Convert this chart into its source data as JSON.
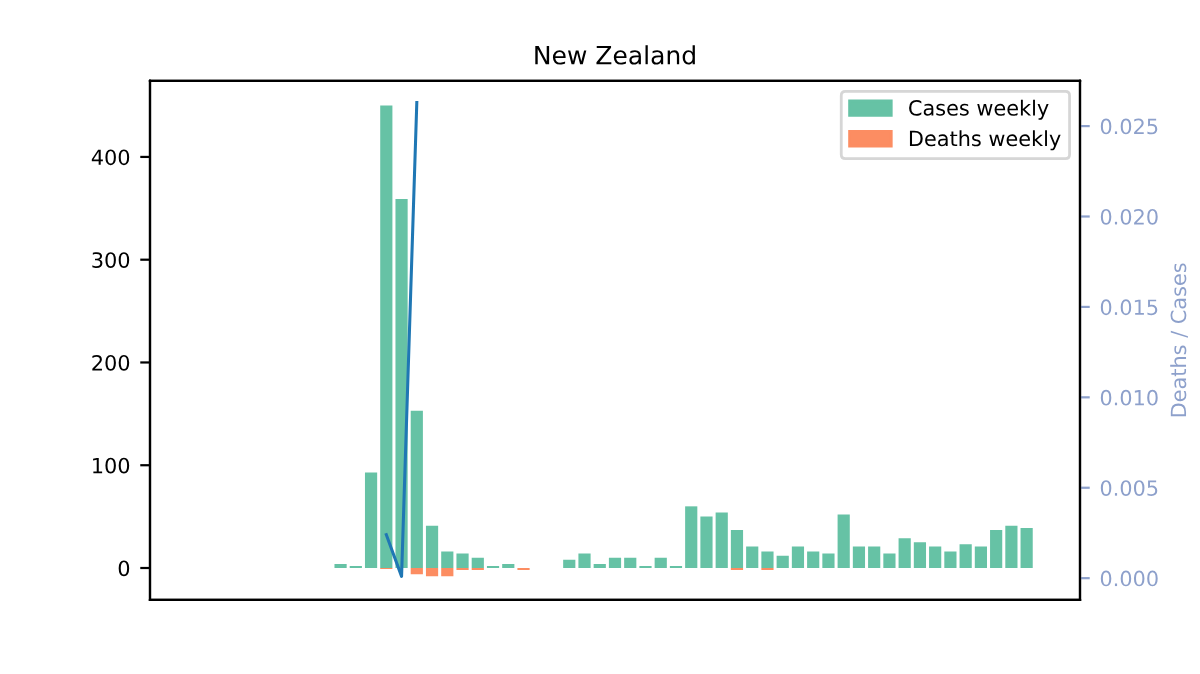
{
  "chart_data": {
    "type": "bar",
    "title": "New Zealand",
    "y2label": "Deaths / Cases",
    "categories": [
      null,
      null,
      null,
      null,
      null,
      null,
      null,
      null,
      null,
      null,
      null,
      null,
      null,
      null,
      null,
      null,
      null,
      null,
      null,
      null,
      null,
      null,
      null,
      null,
      null,
      null,
      null,
      null,
      null,
      null,
      null,
      null,
      null,
      null,
      null,
      null,
      null,
      null,
      null,
      null,
      null,
      null,
      null,
      null,
      null,
      null,
      null,
      null,
      null,
      null,
      null,
      null,
      null,
      null,
      null,
      null,
      null,
      null,
      null,
      null,
      null
    ],
    "series": [
      {
        "name": "Cases weekly",
        "color": "#66c2a5",
        "values": [
          0,
          0,
          0,
          0,
          0,
          0,
          0,
          0,
          0,
          0,
          0,
          0,
          4,
          2,
          93,
          450,
          359,
          153,
          41,
          16,
          14,
          10,
          2,
          4,
          0,
          0,
          0,
          8,
          14,
          4,
          10,
          10,
          2,
          10,
          2,
          60,
          50,
          54,
          37,
          21,
          16,
          12,
          21,
          16,
          14,
          52,
          21,
          21,
          14,
          29,
          25,
          21,
          16,
          23,
          21,
          37,
          41,
          39,
          0,
          0,
          0
        ]
      },
      {
        "name": "Deaths weekly",
        "color": "#fc8d62",
        "values": [
          0,
          0,
          0,
          0,
          0,
          0,
          0,
          0,
          0,
          0,
          0,
          0,
          0,
          0,
          0,
          -1,
          0,
          -6,
          -8,
          -8,
          -2,
          -2,
          0,
          0,
          -2,
          0,
          0,
          0,
          0,
          0,
          0,
          0,
          0,
          0,
          0,
          0,
          0,
          0,
          -2,
          0,
          -2,
          0,
          0,
          0,
          0,
          0,
          0,
          0,
          0,
          0,
          0,
          0,
          0,
          0,
          0,
          0,
          0,
          0,
          0,
          0,
          0
        ]
      },
      {
        "type": "line",
        "axis": "y2",
        "color": "#1f77b4",
        "values": [
          null,
          null,
          null,
          null,
          null,
          null,
          null,
          null,
          null,
          null,
          null,
          null,
          null,
          null,
          null,
          0.0024,
          0.0001,
          0.0263,
          null,
          null,
          null,
          null,
          null,
          null,
          null,
          null,
          null,
          null,
          null,
          null,
          null,
          null,
          null,
          null,
          null,
          null,
          null,
          null,
          null,
          null,
          null,
          null,
          null,
          null,
          null,
          null,
          null,
          null,
          null,
          null,
          null,
          null,
          null,
          null,
          null,
          null,
          null,
          null,
          null,
          null,
          null
        ]
      }
    ],
    "ylim": [
      -31,
      474
    ],
    "yticks": [
      0,
      100,
      200,
      300,
      400
    ],
    "y2lim": [
      -0.0012,
      0.0275
    ],
    "y2ticks": [
      {
        "value": 0,
        "label": "0.000"
      },
      {
        "value": 0.005,
        "label": "0.005"
      },
      {
        "value": 0.01,
        "label": "0.010"
      },
      {
        "value": 0.015,
        "label": "0.015"
      },
      {
        "value": 0.02,
        "label": "0.020"
      },
      {
        "value": 0.025,
        "label": "0.025"
      }
    ],
    "legend": "top right",
    "grid": false,
    "tick_labels": "y"
  }
}
